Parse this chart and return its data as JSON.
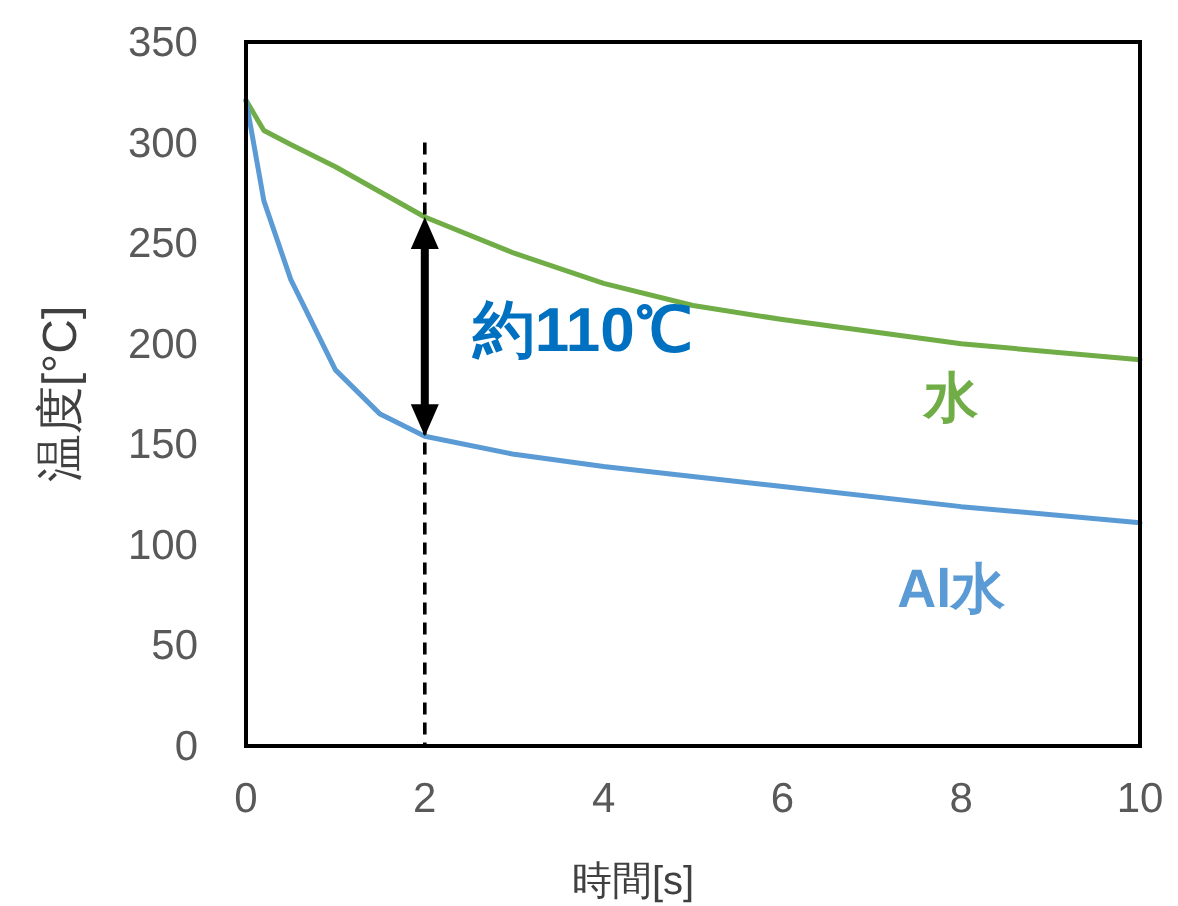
{
  "chart_data": {
    "type": "line",
    "xlabel": "時間[s]",
    "ylabel": "温度[°C]",
    "xlim": [
      0,
      10
    ],
    "ylim": [
      0,
      350
    ],
    "xticks": [
      0,
      2,
      4,
      6,
      8,
      10
    ],
    "yticks": [
      0,
      50,
      100,
      150,
      200,
      250,
      300,
      350
    ],
    "grid": false,
    "series": [
      {
        "name": "水",
        "color": "#70ad47",
        "x": [
          0,
          0.2,
          0.5,
          1,
          2,
          3,
          4,
          5,
          6,
          8,
          10
        ],
        "values": [
          321,
          306,
          299,
          288,
          263,
          245,
          230,
          219,
          212,
          200,
          192
        ]
      },
      {
        "name": "Al水",
        "color": "#5b9bd5",
        "x": [
          0,
          0.2,
          0.5,
          1,
          1.5,
          2,
          3,
          4,
          6,
          8,
          10
        ],
        "values": [
          321,
          271,
          232,
          187,
          165,
          154,
          145,
          139,
          129,
          119,
          111
        ]
      }
    ],
    "ref_lines": [
      {
        "axis": "x",
        "value": 2,
        "color": "#000000",
        "line_style": "dashed"
      }
    ],
    "annotations": [
      "約110℃"
    ]
  }
}
